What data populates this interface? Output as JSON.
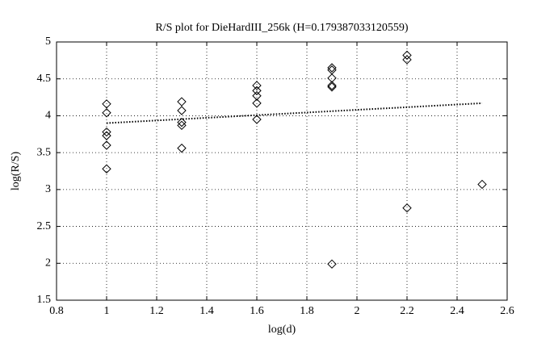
{
  "chart_data": {
    "type": "scatter",
    "title": "R/S plot for DieHardIII_256k (H=0.179387033120559)",
    "x_label": "log(d)",
    "y_label": "log(R/S)",
    "xlim": [
      0.8,
      2.6
    ],
    "xticks": [
      0.8,
      1,
      1.2,
      1.4,
      1.6,
      1.8,
      2,
      2.2,
      2.4,
      2.6
    ],
    "ylim": [
      1.5,
      5
    ],
    "yticks": [
      1.5,
      2,
      2.5,
      3,
      3.5,
      4,
      4.5,
      5
    ],
    "grid": true,
    "series": [
      {
        "type": "scatter",
        "marker": "diamond",
        "color": "#000000",
        "x": [
          1,
          1,
          1,
          1,
          1,
          1,
          1.3,
          1.3,
          1.3,
          1.3,
          1.3,
          1.6,
          1.6,
          1.6,
          1.6,
          1.6,
          1.9,
          1.9,
          1.9,
          1.9,
          1.9,
          1.9,
          2.2,
          2.2,
          2.2,
          2.5
        ],
        "values": [
          4.16,
          4.04,
          3.78,
          3.73,
          3.6,
          3.28,
          4.19,
          4.07,
          3.91,
          3.87,
          3.56,
          4.41,
          4.34,
          4.27,
          4.17,
          3.95,
          4.65,
          4.62,
          4.51,
          4.41,
          4.39,
          1.99,
          4.82,
          4.76,
          2.75,
          3.07
        ]
      },
      {
        "type": "line",
        "style": "dotted",
        "color": "#000000",
        "x": [
          1,
          2.5
        ],
        "values": [
          3.9,
          4.17
        ]
      }
    ]
  }
}
